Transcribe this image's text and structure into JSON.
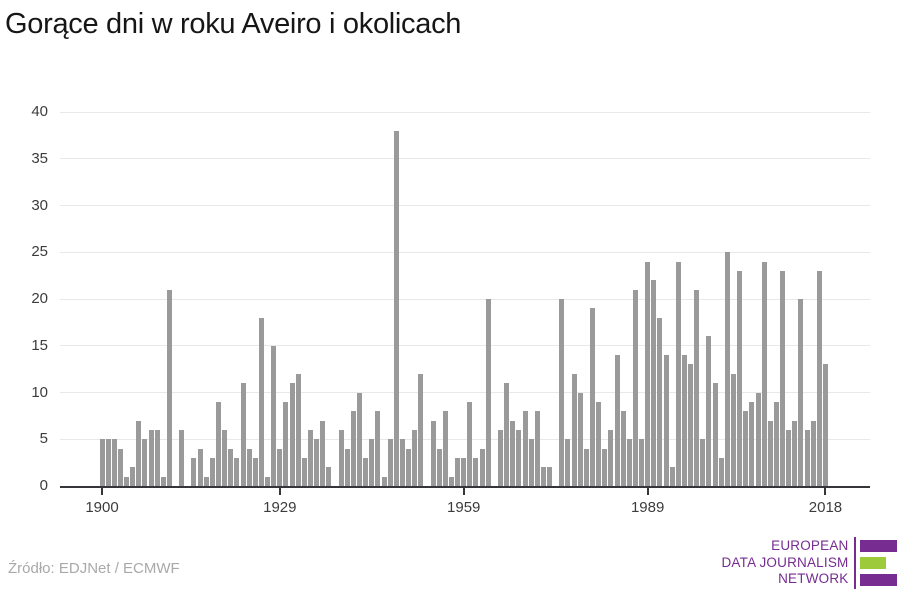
{
  "title": "Gorące dni w roku Aveiro i okolicach",
  "source": "Źródło: EDJNet / ECMWF",
  "logo": {
    "line1": "EUROPEAN",
    "line2": "DATA JOURNALISM",
    "line3": "NETWORK",
    "purple": "#762C91",
    "green": "#9CCA3B"
  },
  "chart_data": {
    "type": "bar",
    "title": "Gorące dni w roku Aveiro i okolicach",
    "xlabel": "",
    "ylabel": "",
    "bar_color": "#9a9a9a",
    "grid": true,
    "ylim": [
      0,
      40
    ],
    "y_ticks": [
      0,
      5,
      10,
      15,
      20,
      25,
      30,
      35,
      40
    ],
    "x_tick_labels": [
      1900,
      1929,
      1959,
      1989,
      2018
    ],
    "years": [
      1900,
      1901,
      1902,
      1903,
      1904,
      1905,
      1906,
      1907,
      1908,
      1909,
      1910,
      1911,
      1912,
      1913,
      1914,
      1915,
      1916,
      1917,
      1918,
      1919,
      1920,
      1921,
      1922,
      1923,
      1924,
      1925,
      1926,
      1927,
      1928,
      1929,
      1930,
      1931,
      1932,
      1933,
      1934,
      1935,
      1936,
      1937,
      1938,
      1939,
      1940,
      1941,
      1942,
      1943,
      1944,
      1945,
      1946,
      1947,
      1948,
      1949,
      1950,
      1951,
      1952,
      1953,
      1954,
      1955,
      1956,
      1957,
      1958,
      1959,
      1960,
      1961,
      1962,
      1963,
      1964,
      1965,
      1966,
      1967,
      1968,
      1969,
      1970,
      1971,
      1972,
      1973,
      1974,
      1975,
      1976,
      1977,
      1978,
      1979,
      1980,
      1981,
      1982,
      1983,
      1984,
      1985,
      1986,
      1987,
      1988,
      1989,
      1990,
      1991,
      1992,
      1993,
      1994,
      1995,
      1996,
      1997,
      1998,
      1999,
      2000,
      2001,
      2002,
      2003,
      2004,
      2005,
      2006,
      2007,
      2008,
      2009,
      2010,
      2011,
      2012,
      2013,
      2014,
      2015,
      2016,
      2017,
      2018
    ],
    "values": [
      5,
      5,
      5,
      4,
      1,
      2,
      7,
      5,
      6,
      6,
      1,
      21,
      0,
      6,
      0,
      3,
      4,
      1,
      3,
      9,
      6,
      4,
      3,
      11,
      4,
      3,
      18,
      1,
      15,
      4,
      9,
      11,
      12,
      3,
      6,
      5,
      7,
      2,
      0,
      6,
      4,
      8,
      10,
      3,
      5,
      8,
      1,
      5,
      38,
      5,
      4,
      6,
      12,
      0,
      7,
      4,
      8,
      1,
      3,
      3,
      9,
      3,
      4,
      20,
      0,
      6,
      11,
      7,
      6,
      8,
      5,
      8,
      2,
      2,
      0,
      20,
      5,
      12,
      10,
      4,
      19,
      9,
      4,
      6,
      14,
      8,
      5,
      21,
      5,
      24,
      22,
      18,
      14,
      2,
      24,
      14,
      13,
      21,
      5,
      16,
      11,
      3,
      25,
      12,
      23,
      8,
      9,
      10,
      24,
      7,
      9,
      23,
      6,
      7,
      20,
      6,
      7,
      23,
      13
    ]
  }
}
